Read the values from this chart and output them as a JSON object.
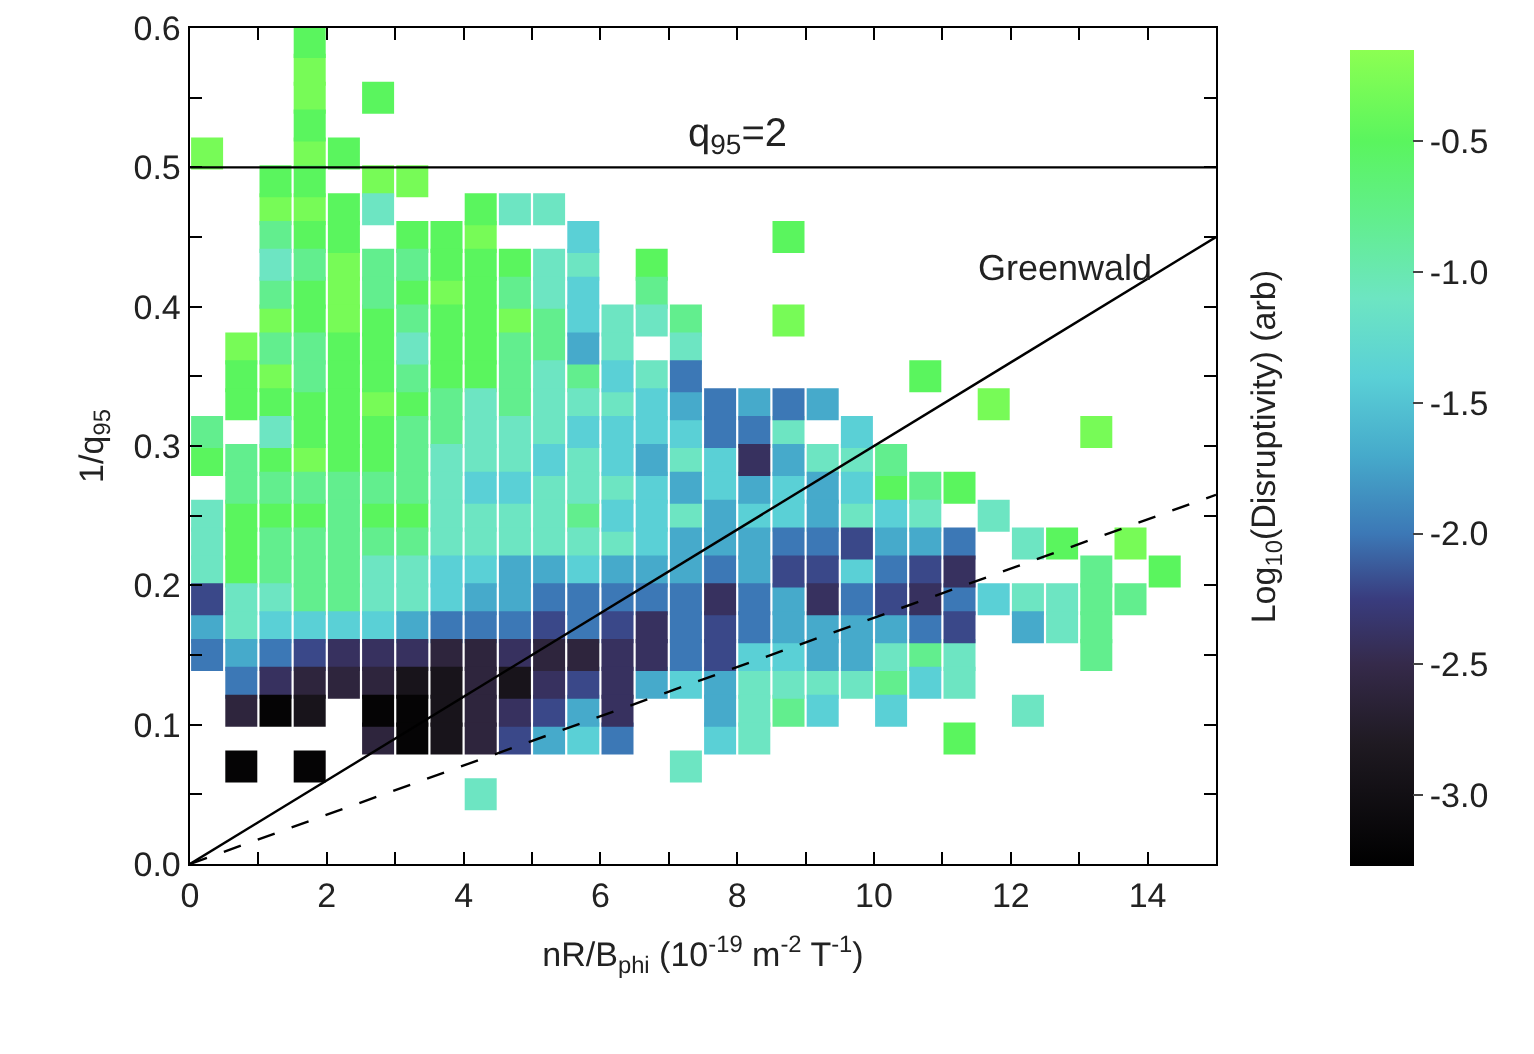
{
  "chart_data": {
    "type": "scatter",
    "marker": "square",
    "grid": false,
    "xlabel": "nR/B$_{phi}$ (10$^{-19}$ m$^{-2}$ T$^{-1}$)",
    "ylabel": "1/q$_{95}$",
    "clabel": "Log$_{10}$(Disruptivity) (arb)",
    "xlim": [
      0,
      15
    ],
    "ylim": [
      0,
      0.6
    ],
    "xticks": [
      0,
      {
        "value": 1,
        "label": null
      },
      2,
      {
        "value": 3,
        "label": null
      },
      4,
      {
        "value": 5,
        "label": null
      },
      6,
      {
        "value": 7,
        "label": null
      },
      8,
      {
        "value": 9,
        "label": null
      },
      10,
      {
        "value": 11,
        "label": null
      },
      12,
      {
        "value": 13,
        "label": null
      },
      14,
      {
        "value": 15,
        "label": null
      }
    ],
    "yticks": [
      {
        "value": 0,
        "label": "0.0"
      },
      {
        "value": 0.05,
        "label": null
      },
      {
        "value": 0.1,
        "label": "0.1"
      },
      {
        "value": 0.15,
        "label": null
      },
      {
        "value": 0.2,
        "label": "0.2"
      },
      {
        "value": 0.25,
        "label": null
      },
      {
        "value": 0.3,
        "label": "0.3"
      },
      {
        "value": 0.35,
        "label": null
      },
      {
        "value": 0.4,
        "label": "0.4"
      },
      {
        "value": 0.45,
        "label": null
      },
      {
        "value": 0.5,
        "label": "0.5"
      },
      {
        "value": 0.55,
        "label": null
      },
      {
        "value": 0.6,
        "label": "0.6"
      }
    ],
    "clim": [
      -3.27,
      -0.15
    ],
    "cticks": [
      {
        "value": -3,
        "label": "-3.0"
      },
      {
        "value": -2.5,
        "label": "-2.5"
      },
      {
        "value": -2,
        "label": "-2.0"
      },
      {
        "value": -1.5,
        "label": "-1.5"
      },
      {
        "value": -1,
        "label": "-1.0"
      },
      {
        "value": -0.5,
        "label": "-0.5"
      }
    ],
    "ref_lines": [
      {
        "axis": "y",
        "value": 0.5,
        "color": "#000000"
      }
    ],
    "annotations": [
      "q$_{95}$=2",
      "Greenwald"
    ],
    "series": [
      {
        "type": "scatter",
        "x": [
          1.75,
          1.75,
          0.25,
          1.75,
          2.75,
          3.25,
          1.25,
          1.75,
          4.25,
          2.25,
          2.25,
          3.75,
          1.25,
          2.25,
          4.75,
          8.75,
          0.75,
          1.25,
          2.75,
          11.75,
          13.25,
          1.75,
          13.75
        ],
        "values": [
          0.57,
          0.55,
          0.51,
          0.51,
          0.49,
          0.49,
          0.47,
          0.47,
          0.45,
          0.43,
          0.41,
          0.41,
          0.39,
          0.39,
          0.39,
          0.39,
          0.37,
          0.35,
          0.33,
          0.33,
          0.31,
          0.29,
          0.23
        ],
        "cvalues": [
          -0.3,
          -0.3,
          -0.3,
          -0.3,
          -0.3,
          -0.3,
          -0.3,
          -0.3,
          -0.3,
          -0.3,
          -0.3,
          -0.3,
          -0.3,
          -0.3,
          -0.3,
          -0.3,
          -0.3,
          -0.3,
          -0.3,
          -0.3,
          -0.3,
          -0.3,
          -0.3
        ]
      },
      {
        "type": "scatter",
        "x": [
          1.75,
          2.75,
          1.75,
          2.25,
          1.25,
          1.75,
          2.25,
          4.25,
          1.75,
          2.25,
          3.25,
          3.75,
          8.75,
          3.75,
          4.25,
          4.75,
          6.75,
          1.75,
          3.25,
          4.25,
          1.75,
          2.75,
          3.75,
          4.25,
          2.25,
          2.75,
          3.75,
          4.25,
          0.75,
          2.25,
          2.75,
          3.75,
          4.25,
          10.75,
          0.75,
          1.25,
          1.75,
          2.25,
          3.25,
          1.75,
          2.25,
          2.75,
          0.25,
          1.25,
          2.25,
          2.75,
          10.25,
          11.25,
          0.75,
          1.25,
          1.75,
          2.75,
          3.25,
          0.75,
          12.75,
          0.75,
          14.25,
          11.25
        ],
        "values": [
          0.59,
          0.55,
          0.53,
          0.51,
          0.49,
          0.49,
          0.47,
          0.47,
          0.45,
          0.45,
          0.45,
          0.45,
          0.45,
          0.43,
          0.43,
          0.43,
          0.43,
          0.41,
          0.41,
          0.41,
          0.39,
          0.39,
          0.39,
          0.39,
          0.37,
          0.37,
          0.37,
          0.37,
          0.35,
          0.35,
          0.35,
          0.35,
          0.35,
          0.35,
          0.33,
          0.33,
          0.33,
          0.33,
          0.33,
          0.31,
          0.31,
          0.31,
          0.29,
          0.29,
          0.29,
          0.29,
          0.27,
          0.27,
          0.25,
          0.25,
          0.25,
          0.25,
          0.25,
          0.23,
          0.23,
          0.21,
          0.21,
          0.09
        ],
        "cvalues": [
          -0.5,
          -0.5,
          -0.5,
          -0.5,
          -0.5,
          -0.5,
          -0.5,
          -0.5,
          -0.5,
          -0.5,
          -0.5,
          -0.5,
          -0.5,
          -0.5,
          -0.5,
          -0.5,
          -0.5,
          -0.5,
          -0.5,
          -0.5,
          -0.5,
          -0.5,
          -0.5,
          -0.5,
          -0.5,
          -0.5,
          -0.5,
          -0.5,
          -0.5,
          -0.5,
          -0.5,
          -0.5,
          -0.5,
          -0.5,
          -0.5,
          -0.5,
          -0.5,
          -0.5,
          -0.5,
          -0.5,
          -0.5,
          -0.5,
          -0.5,
          -0.5,
          -0.5,
          -0.5,
          -0.5,
          -0.5,
          -0.5,
          -0.5,
          -0.5,
          -0.5,
          -0.5,
          -0.5,
          -0.5,
          -0.5,
          -0.5,
          -0.5
        ]
      },
      {
        "type": "scatter",
        "x": [
          1.25,
          1.75,
          2.75,
          3.25,
          1.25,
          2.75,
          4.75,
          6.75,
          3.25,
          5.25,
          7.25,
          1.25,
          1.75,
          4.75,
          5.25,
          1.75,
          3.25,
          4.75,
          5.75,
          3.75,
          4.75,
          0.25,
          3.25,
          3.75,
          0.75,
          3.25,
          10.25,
          0.75,
          1.25,
          1.75,
          2.25,
          2.75,
          3.25,
          10.75,
          2.25,
          5.75,
          1.25,
          1.75,
          2.25,
          2.75,
          3.25,
          1.25,
          1.75,
          2.25,
          13.25,
          1.75,
          2.25,
          13.25,
          13.75,
          13.25,
          10.75,
          13.25,
          10.25,
          8.75
        ],
        "values": [
          0.45,
          0.43,
          0.43,
          0.43,
          0.41,
          0.41,
          0.41,
          0.41,
          0.39,
          0.39,
          0.39,
          0.37,
          0.37,
          0.37,
          0.37,
          0.35,
          0.35,
          0.35,
          0.35,
          0.33,
          0.33,
          0.31,
          0.31,
          0.31,
          0.29,
          0.29,
          0.29,
          0.27,
          0.27,
          0.27,
          0.27,
          0.27,
          0.27,
          0.27,
          0.25,
          0.25,
          0.23,
          0.23,
          0.23,
          0.23,
          0.23,
          0.21,
          0.21,
          0.21,
          0.21,
          0.19,
          0.19,
          0.19,
          0.19,
          0.17,
          0.15,
          0.15,
          0.13,
          0.11
        ],
        "cvalues": [
          -0.8,
          -0.8,
          -0.8,
          -0.8,
          -0.8,
          -0.8,
          -0.8,
          -0.8,
          -0.8,
          -0.8,
          -0.8,
          -0.8,
          -0.8,
          -0.8,
          -0.8,
          -0.8,
          -0.8,
          -0.8,
          -0.8,
          -0.8,
          -0.8,
          -0.8,
          -0.8,
          -0.8,
          -0.8,
          -0.8,
          -0.8,
          -0.8,
          -0.8,
          -0.8,
          -0.8,
          -0.8,
          -0.8,
          -0.8,
          -0.8,
          -0.8,
          -0.8,
          -0.8,
          -0.8,
          -0.8,
          -0.8,
          -0.8,
          -0.8,
          -0.8,
          -0.8,
          -0.8,
          -0.8,
          -0.8,
          -0.8,
          -0.8,
          -0.8,
          -0.8,
          -0.8,
          -0.8
        ]
      },
      {
        "type": "scatter",
        "x": [
          2.75,
          4.75,
          5.25,
          1.25,
          5.25,
          5.75,
          5.25,
          6.25,
          6.75,
          3.25,
          6.25,
          7.25,
          5.25,
          6.75,
          4.25,
          5.25,
          5.75,
          6.25,
          1.25,
          4.25,
          4.75,
          5.25,
          8.75,
          3.75,
          4.25,
          4.75,
          5.75,
          7.25,
          9.25,
          9.75,
          3.75,
          5.25,
          5.75,
          6.25,
          0.25,
          3.75,
          4.25,
          4.75,
          5.25,
          7.25,
          9.75,
          10.75,
          11.75,
          0.25,
          3.75,
          4.25,
          4.75,
          5.25,
          5.75,
          6.25,
          12.25,
          0.25,
          2.75,
          3.25,
          0.75,
          1.25,
          2.75,
          3.25,
          12.25,
          12.75,
          0.75,
          12.75,
          10.25,
          11.25,
          8.25,
          8.75,
          9.25,
          9.75,
          11.25,
          8.25,
          12.25,
          8.25,
          7.25,
          4.25
        ],
        "values": [
          0.47,
          0.47,
          0.47,
          0.43,
          0.43,
          0.43,
          0.41,
          0.39,
          0.39,
          0.37,
          0.37,
          0.37,
          0.35,
          0.35,
          0.33,
          0.33,
          0.33,
          0.33,
          0.31,
          0.31,
          0.31,
          0.31,
          0.31,
          0.29,
          0.29,
          0.29,
          0.29,
          0.29,
          0.29,
          0.29,
          0.27,
          0.27,
          0.27,
          0.27,
          0.25,
          0.25,
          0.25,
          0.25,
          0.25,
          0.25,
          0.25,
          0.25,
          0.25,
          0.23,
          0.23,
          0.23,
          0.23,
          0.23,
          0.23,
          0.23,
          0.23,
          0.21,
          0.21,
          0.21,
          0.19,
          0.19,
          0.19,
          0.19,
          0.19,
          0.19,
          0.17,
          0.17,
          0.15,
          0.15,
          0.13,
          0.13,
          0.13,
          0.13,
          0.13,
          0.11,
          0.11,
          0.09,
          0.07,
          0.05
        ],
        "cvalues": [
          -1.1,
          -1.1,
          -1.1,
          -1.1,
          -1.1,
          -1.1,
          -1.1,
          -1.1,
          -1.1,
          -1.1,
          -1.1,
          -1.1,
          -1.1,
          -1.1,
          -1.1,
          -1.1,
          -1.1,
          -1.1,
          -1.1,
          -1.1,
          -1.1,
          -1.1,
          -1.1,
          -1.1,
          -1.1,
          -1.1,
          -1.1,
          -1.1,
          -1.1,
          -1.1,
          -1.1,
          -1.1,
          -1.1,
          -1.1,
          -1.1,
          -1.1,
          -1.1,
          -1.1,
          -1.1,
          -1.1,
          -1.1,
          -1.1,
          -1.1,
          -1.1,
          -1.1,
          -1.1,
          -1.1,
          -1.1,
          -1.1,
          -1.1,
          -1.1,
          -1.1,
          -1.1,
          -1.1,
          -1.1,
          -1.1,
          -1.1,
          -1.1,
          -1.1,
          -1.1,
          -1.1,
          -1.1,
          -1.1,
          -1.1,
          -1.1,
          -1.1,
          -1.1,
          -1.1,
          -1.1,
          -1.1,
          -1.1,
          -1.1,
          -1.1,
          -1.1
        ]
      },
      {
        "type": "scatter",
        "x": [
          5.75,
          5.75,
          5.75,
          6.25,
          6.75,
          5.75,
          6.25,
          6.75,
          7.25,
          9.75,
          5.25,
          6.25,
          7.75,
          4.25,
          4.75,
          6.75,
          7.75,
          8.75,
          9.75,
          6.25,
          6.75,
          8.25,
          8.75,
          10.25,
          6.75,
          3.75,
          4.25,
          5.75,
          9.75,
          3.75,
          11.75,
          1.25,
          1.75,
          2.25,
          2.75,
          8.25,
          8.75,
          7.25,
          10.75,
          9.25,
          10.25,
          5.75,
          7.75
        ],
        "values": [
          0.45,
          0.41,
          0.39,
          0.35,
          0.33,
          0.31,
          0.31,
          0.31,
          0.31,
          0.31,
          0.29,
          0.29,
          0.29,
          0.27,
          0.27,
          0.27,
          0.27,
          0.27,
          0.27,
          0.25,
          0.25,
          0.25,
          0.25,
          0.25,
          0.23,
          0.21,
          0.21,
          0.21,
          0.21,
          0.19,
          0.19,
          0.17,
          0.17,
          0.17,
          0.17,
          0.15,
          0.15,
          0.13,
          0.13,
          0.11,
          0.11,
          0.09,
          0.09
        ],
        "cvalues": [
          -1.4,
          -1.4,
          -1.4,
          -1.4,
          -1.4,
          -1.4,
          -1.4,
          -1.4,
          -1.4,
          -1.4,
          -1.4,
          -1.4,
          -1.4,
          -1.4,
          -1.4,
          -1.4,
          -1.4,
          -1.4,
          -1.4,
          -1.4,
          -1.4,
          -1.4,
          -1.4,
          -1.4,
          -1.4,
          -1.4,
          -1.4,
          -1.4,
          -1.4,
          -1.4,
          -1.4,
          -1.4,
          -1.4,
          -1.4,
          -1.4,
          -1.4,
          -1.4,
          -1.4,
          -1.4,
          -1.4,
          -1.4,
          -1.4,
          -1.4
        ]
      },
      {
        "type": "scatter",
        "x": [
          5.75,
          7.25,
          8.25,
          9.25,
          6.75,
          8.75,
          7.25,
          8.25,
          9.25,
          7.75,
          9.25,
          7.25,
          7.75,
          8.25,
          10.25,
          10.75,
          4.75,
          5.25,
          6.25,
          6.75,
          7.25,
          8.25,
          4.25,
          4.75,
          8.75,
          0.25,
          3.25,
          8.75,
          9.25,
          9.75,
          10.25,
          12.25,
          0.75,
          9.25,
          9.75,
          6.75,
          7.75,
          5.75,
          7.75,
          5.25
        ],
        "values": [
          0.37,
          0.33,
          0.33,
          0.33,
          0.29,
          0.29,
          0.27,
          0.27,
          0.27,
          0.25,
          0.25,
          0.23,
          0.23,
          0.23,
          0.23,
          0.23,
          0.21,
          0.21,
          0.21,
          0.21,
          0.21,
          0.21,
          0.19,
          0.19,
          0.19,
          0.17,
          0.17,
          0.17,
          0.17,
          0.17,
          0.17,
          0.17,
          0.15,
          0.15,
          0.15,
          0.13,
          0.13,
          0.11,
          0.11,
          0.09
        ],
        "cvalues": [
          -1.7,
          -1.7,
          -1.7,
          -1.7,
          -1.7,
          -1.7,
          -1.7,
          -1.7,
          -1.7,
          -1.7,
          -1.7,
          -1.7,
          -1.7,
          -1.7,
          -1.7,
          -1.7,
          -1.7,
          -1.7,
          -1.7,
          -1.7,
          -1.7,
          -1.7,
          -1.7,
          -1.7,
          -1.7,
          -1.7,
          -1.7,
          -1.7,
          -1.7,
          -1.7,
          -1.7,
          -1.7,
          -1.7,
          -1.7,
          -1.7,
          -1.7,
          -1.7,
          -1.7,
          -1.7,
          -1.7
        ]
      },
      {
        "type": "scatter",
        "x": [
          7.25,
          7.75,
          8.75,
          7.75,
          8.25,
          8.75,
          9.25,
          11.25,
          7.75,
          10.25,
          5.25,
          5.75,
          6.25,
          6.75,
          7.25,
          8.25,
          9.75,
          11.25,
          3.75,
          4.25,
          4.75,
          5.75,
          7.25,
          8.25,
          10.75,
          0.25,
          1.25,
          7.25,
          0.75,
          6.25
        ],
        "values": [
          0.35,
          0.33,
          0.33,
          0.31,
          0.31,
          0.23,
          0.23,
          0.23,
          0.21,
          0.21,
          0.19,
          0.19,
          0.19,
          0.19,
          0.19,
          0.19,
          0.19,
          0.19,
          0.17,
          0.17,
          0.17,
          0.17,
          0.17,
          0.17,
          0.17,
          0.15,
          0.15,
          0.15,
          0.13,
          0.09
        ],
        "cvalues": [
          -2.0,
          -2.0,
          -2.0,
          -2.0,
          -2.0,
          -2.0,
          -2.0,
          -2.0,
          -2.0,
          -2.0,
          -2.0,
          -2.0,
          -2.0,
          -2.0,
          -2.0,
          -2.0,
          -2.0,
          -2.0,
          -2.0,
          -2.0,
          -2.0,
          -2.0,
          -2.0,
          -2.0,
          -2.0,
          -2.0,
          -2.0,
          -2.0,
          -2.0,
          -2.0
        ]
      },
      {
        "type": "scatter",
        "x": [
          9.75,
          8.75,
          9.25,
          10.75,
          0.25,
          10.25,
          5.25,
          6.25,
          7.75,
          11.25,
          1.75,
          7.75,
          5.75,
          5.25,
          4.75
        ],
        "values": [
          0.23,
          0.21,
          0.21,
          0.21,
          0.19,
          0.19,
          0.17,
          0.17,
          0.17,
          0.17,
          0.15,
          0.15,
          0.13,
          0.11,
          0.09
        ],
        "cvalues": [
          -2.2,
          -2.2,
          -2.2,
          -2.2,
          -2.2,
          -2.2,
          -2.2,
          -2.2,
          -2.2,
          -2.2,
          -2.2,
          -2.2,
          -2.2,
          -2.2,
          -2.2
        ]
      },
      {
        "type": "scatter",
        "x": [
          8.25,
          11.25,
          7.75,
          9.25,
          10.75,
          6.75,
          2.25,
          2.75,
          3.25,
          4.75,
          6.25,
          6.75,
          1.25,
          5.25,
          6.25,
          4.75,
          6.25
        ],
        "values": [
          0.29,
          0.21,
          0.19,
          0.19,
          0.19,
          0.17,
          0.15,
          0.15,
          0.15,
          0.15,
          0.15,
          0.15,
          0.13,
          0.13,
          0.13,
          0.11,
          0.11
        ],
        "cvalues": [
          -2.4,
          -2.4,
          -2.4,
          -2.4,
          -2.4,
          -2.4,
          -2.4,
          -2.4,
          -2.4,
          -2.4,
          -2.4,
          -2.4,
          -2.4,
          -2.4,
          -2.4,
          -2.4,
          -2.4
        ]
      },
      {
        "type": "scatter",
        "x": [
          3.75,
          4.25,
          5.25,
          5.75,
          1.75,
          2.25,
          2.75,
          4.25,
          0.75,
          4.25,
          2.75,
          4.25
        ],
        "values": [
          0.15,
          0.15,
          0.15,
          0.15,
          0.13,
          0.13,
          0.13,
          0.13,
          0.11,
          0.11,
          0.09,
          0.09
        ],
        "cvalues": [
          -2.6,
          -2.6,
          -2.6,
          -2.6,
          -2.6,
          -2.6,
          -2.6,
          -2.6,
          -2.6,
          -2.6,
          -2.6,
          -2.6
        ]
      },
      {
        "type": "scatter",
        "x": [
          3.25,
          3.75,
          4.75,
          1.75,
          3.75,
          3.75
        ],
        "values": [
          0.13,
          0.13,
          0.13,
          0.11,
          0.11,
          0.09
        ],
        "cvalues": [
          -2.9,
          -2.9,
          -2.9,
          -2.9,
          -2.9,
          -2.9
        ]
      },
      {
        "type": "scatter",
        "x": [
          1.25,
          2.75,
          3.25,
          3.25,
          0.75,
          1.75
        ],
        "values": [
          0.11,
          0.11,
          0.11,
          0.09,
          0.07,
          0.07
        ],
        "cvalues": [
          -3.2,
          -3.2,
          -3.2,
          -3.2,
          -3.2,
          -3.2
        ]
      },
      {
        "type": "line",
        "x": [
          0,
          15
        ],
        "values": [
          0,
          0.45
        ],
        "color": "#000000",
        "line_style": "solid",
        "marker": "none"
      },
      {
        "type": "line",
        "x": [
          0,
          15
        ],
        "values": [
          0,
          0.265
        ],
        "color": "#000000",
        "line_style": "dashed",
        "marker": "none"
      }
    ]
  }
}
